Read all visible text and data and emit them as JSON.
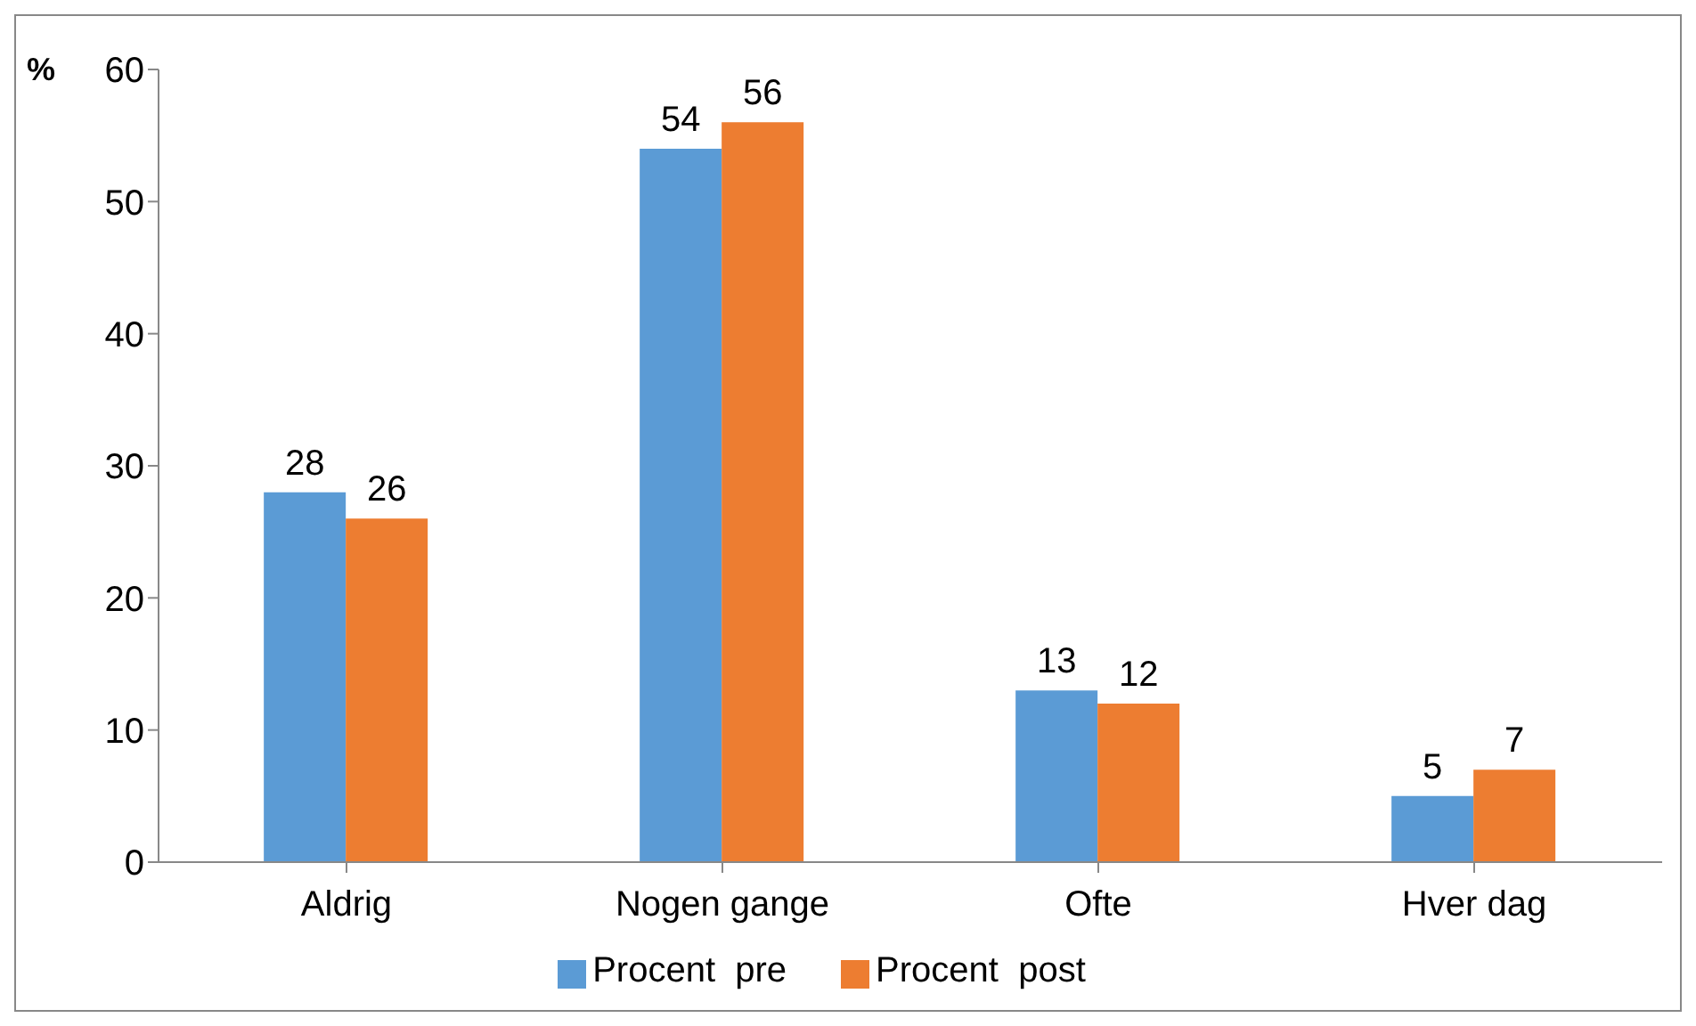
{
  "chart_data": {
    "type": "bar",
    "ylabel": "%",
    "categories": [
      "Aldrig",
      "Nogen gange",
      "Ofte",
      "Hver dag"
    ],
    "series": [
      {
        "name": "Procent  pre",
        "color": "#5b9bd5",
        "values": [
          28,
          54,
          13,
          5
        ]
      },
      {
        "name": "Procent  post",
        "color": "#ed7d31",
        "values": [
          26,
          56,
          12,
          7
        ]
      }
    ],
    "ylim": [
      0,
      60
    ],
    "yticks": [
      0,
      10,
      20,
      30,
      40,
      50,
      60
    ],
    "data_labels": true,
    "legend": "bottom",
    "grid": false
  }
}
